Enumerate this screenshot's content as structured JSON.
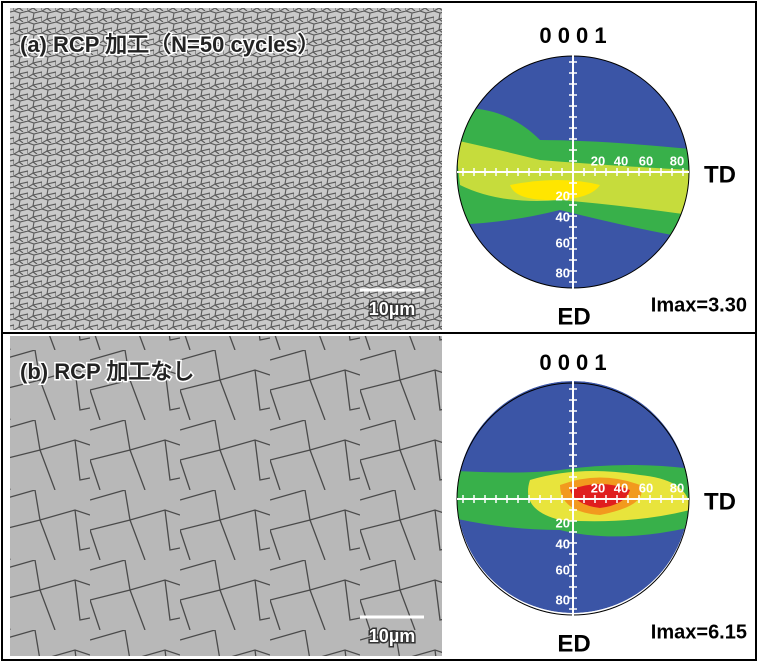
{
  "panels": [
    {
      "label": "(a) RCP 加工（N=50 cycles）",
      "scale_bar": "10µm",
      "pole_figure": {
        "title": "0 0 0 1",
        "td_ticks": [
          "20",
          "40",
          "60",
          "80"
        ],
        "ed_ticks": [
          "20",
          "40",
          "60",
          "80"
        ],
        "td_label": "TD",
        "ed_label": "ED",
        "imax": "Imax=3.30"
      }
    },
    {
      "label": "(b) RCP 加工なし",
      "scale_bar": "10µm",
      "pole_figure": {
        "title": "0 0 0 1",
        "td_ticks": [
          "20",
          "40",
          "60",
          "80"
        ],
        "ed_ticks": [
          "20",
          "40",
          "60",
          "80"
        ],
        "td_label": "TD",
        "ed_label": "ED",
        "imax": "Imax=6.15"
      }
    }
  ]
}
